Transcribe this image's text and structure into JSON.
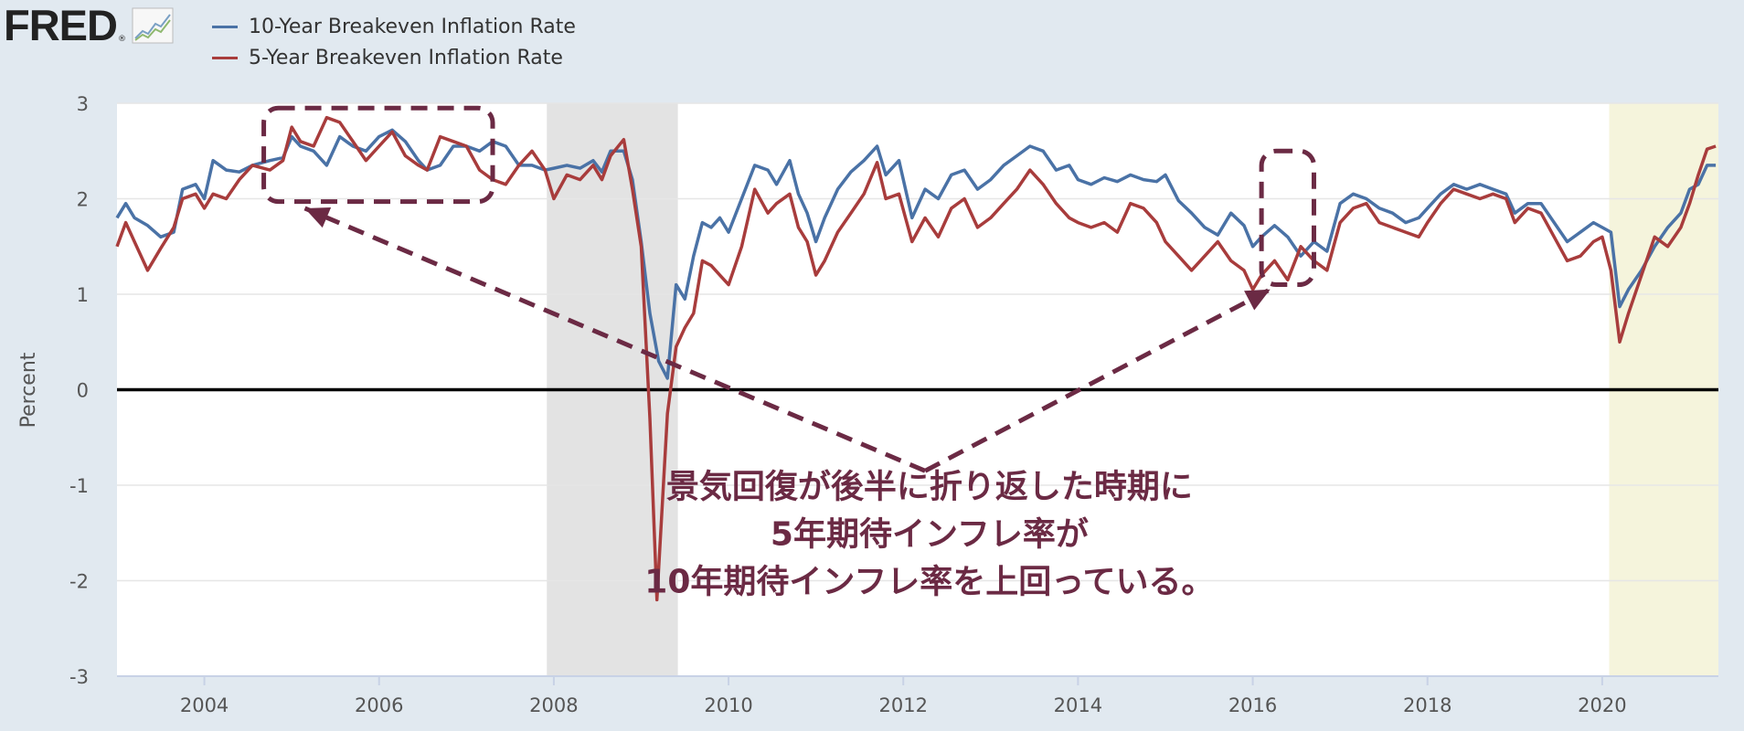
{
  "logo": {
    "text": "FRED",
    "reg": "®",
    "icon": "sparkline-icon"
  },
  "colors": {
    "series1": "#4a72a6",
    "series2": "#a83c3c",
    "annotation": "#6b2a44",
    "recession": "#e3e3e3",
    "covid": "#f5f4dc",
    "background": "#e1e9f0"
  },
  "chart_data": {
    "type": "line",
    "ylabel": "Percent",
    "ylim": [
      -3,
      3
    ],
    "xlim": [
      2003.0,
      2021.33
    ],
    "yticks": [
      "3",
      "2",
      "1",
      "0",
      "-1",
      "-2",
      "-3"
    ],
    "xticks": [
      "2004",
      "2006",
      "2008",
      "2010",
      "2012",
      "2014",
      "2016",
      "2018",
      "2020"
    ],
    "grid": true,
    "legend": "top-left",
    "shaded_periods": [
      {
        "start": 2007.92,
        "end": 2009.42,
        "kind": "recession"
      },
      {
        "start": 2020.08,
        "end": 2021.33,
        "kind": "highlight"
      }
    ],
    "series": [
      {
        "name": "10-Year Breakeven Inflation Rate",
        "points": [
          [
            2003.0,
            1.8
          ],
          [
            2003.1,
            1.95
          ],
          [
            2003.2,
            1.8
          ],
          [
            2003.35,
            1.72
          ],
          [
            2003.5,
            1.6
          ],
          [
            2003.65,
            1.65
          ],
          [
            2003.75,
            2.1
          ],
          [
            2003.9,
            2.15
          ],
          [
            2004.0,
            2.0
          ],
          [
            2004.1,
            2.4
          ],
          [
            2004.25,
            2.3
          ],
          [
            2004.4,
            2.28
          ],
          [
            2004.55,
            2.35
          ],
          [
            2004.75,
            2.4
          ],
          [
            2004.9,
            2.43
          ],
          [
            2005.0,
            2.65
          ],
          [
            2005.1,
            2.55
          ],
          [
            2005.25,
            2.5
          ],
          [
            2005.4,
            2.35
          ],
          [
            2005.55,
            2.65
          ],
          [
            2005.7,
            2.55
          ],
          [
            2005.85,
            2.5
          ],
          [
            2006.0,
            2.65
          ],
          [
            2006.15,
            2.72
          ],
          [
            2006.3,
            2.6
          ],
          [
            2006.45,
            2.4
          ],
          [
            2006.55,
            2.3
          ],
          [
            2006.7,
            2.35
          ],
          [
            2006.85,
            2.55
          ],
          [
            2007.0,
            2.55
          ],
          [
            2007.15,
            2.5
          ],
          [
            2007.3,
            2.6
          ],
          [
            2007.45,
            2.55
          ],
          [
            2007.6,
            2.35
          ],
          [
            2007.75,
            2.35
          ],
          [
            2007.9,
            2.3
          ],
          [
            2008.0,
            2.32
          ],
          [
            2008.15,
            2.35
          ],
          [
            2008.3,
            2.32
          ],
          [
            2008.45,
            2.4
          ],
          [
            2008.55,
            2.28
          ],
          [
            2008.65,
            2.5
          ],
          [
            2008.8,
            2.5
          ],
          [
            2008.9,
            2.2
          ],
          [
            2009.0,
            1.55
          ],
          [
            2009.1,
            0.8
          ],
          [
            2009.2,
            0.3
          ],
          [
            2009.3,
            0.12
          ],
          [
            2009.4,
            1.1
          ],
          [
            2009.5,
            0.95
          ],
          [
            2009.6,
            1.4
          ],
          [
            2009.7,
            1.75
          ],
          [
            2009.8,
            1.7
          ],
          [
            2009.9,
            1.8
          ],
          [
            2010.0,
            1.65
          ],
          [
            2010.15,
            2.0
          ],
          [
            2010.3,
            2.35
          ],
          [
            2010.45,
            2.3
          ],
          [
            2010.55,
            2.15
          ],
          [
            2010.7,
            2.4
          ],
          [
            2010.8,
            2.05
          ],
          [
            2010.9,
            1.85
          ],
          [
            2011.0,
            1.55
          ],
          [
            2011.1,
            1.8
          ],
          [
            2011.25,
            2.1
          ],
          [
            2011.4,
            2.28
          ],
          [
            2011.55,
            2.4
          ],
          [
            2011.7,
            2.55
          ],
          [
            2011.8,
            2.25
          ],
          [
            2011.95,
            2.4
          ],
          [
            2012.1,
            1.8
          ],
          [
            2012.25,
            2.1
          ],
          [
            2012.4,
            2.0
          ],
          [
            2012.55,
            2.25
          ],
          [
            2012.7,
            2.3
          ],
          [
            2012.85,
            2.1
          ],
          [
            2013.0,
            2.2
          ],
          [
            2013.15,
            2.35
          ],
          [
            2013.3,
            2.45
          ],
          [
            2013.45,
            2.55
          ],
          [
            2013.6,
            2.5
          ],
          [
            2013.75,
            2.3
          ],
          [
            2013.9,
            2.35
          ],
          [
            2014.0,
            2.2
          ],
          [
            2014.15,
            2.15
          ],
          [
            2014.3,
            2.22
          ],
          [
            2014.45,
            2.18
          ],
          [
            2014.6,
            2.25
          ],
          [
            2014.75,
            2.2
          ],
          [
            2014.9,
            2.18
          ],
          [
            2015.0,
            2.25
          ],
          [
            2015.15,
            1.98
          ],
          [
            2015.3,
            1.85
          ],
          [
            2015.45,
            1.7
          ],
          [
            2015.6,
            1.62
          ],
          [
            2015.75,
            1.85
          ],
          [
            2015.9,
            1.72
          ],
          [
            2016.0,
            1.5
          ],
          [
            2016.1,
            1.6
          ],
          [
            2016.25,
            1.72
          ],
          [
            2016.4,
            1.6
          ],
          [
            2016.55,
            1.4
          ],
          [
            2016.7,
            1.55
          ],
          [
            2016.85,
            1.45
          ],
          [
            2017.0,
            1.95
          ],
          [
            2017.15,
            2.05
          ],
          [
            2017.3,
            2.0
          ],
          [
            2017.45,
            1.9
          ],
          [
            2017.6,
            1.85
          ],
          [
            2017.75,
            1.75
          ],
          [
            2017.9,
            1.8
          ],
          [
            2018.0,
            1.9
          ],
          [
            2018.15,
            2.05
          ],
          [
            2018.3,
            2.15
          ],
          [
            2018.45,
            2.1
          ],
          [
            2018.6,
            2.15
          ],
          [
            2018.75,
            2.1
          ],
          [
            2018.9,
            2.05
          ],
          [
            2019.0,
            1.85
          ],
          [
            2019.15,
            1.95
          ],
          [
            2019.3,
            1.95
          ],
          [
            2019.45,
            1.75
          ],
          [
            2019.6,
            1.55
          ],
          [
            2019.75,
            1.65
          ],
          [
            2019.9,
            1.75
          ],
          [
            2020.0,
            1.7
          ],
          [
            2020.1,
            1.65
          ],
          [
            2020.2,
            0.87
          ],
          [
            2020.3,
            1.05
          ],
          [
            2020.45,
            1.25
          ],
          [
            2020.6,
            1.5
          ],
          [
            2020.75,
            1.7
          ],
          [
            2020.9,
            1.85
          ],
          [
            2021.0,
            2.1
          ],
          [
            2021.1,
            2.15
          ],
          [
            2021.2,
            2.35
          ],
          [
            2021.3,
            2.35
          ]
        ]
      },
      {
        "name": "5-Year Breakeven Inflation Rate",
        "points": [
          [
            2003.0,
            1.5
          ],
          [
            2003.1,
            1.75
          ],
          [
            2003.2,
            1.55
          ],
          [
            2003.35,
            1.25
          ],
          [
            2003.5,
            1.48
          ],
          [
            2003.65,
            1.7
          ],
          [
            2003.75,
            2.0
          ],
          [
            2003.9,
            2.05
          ],
          [
            2004.0,
            1.9
          ],
          [
            2004.1,
            2.05
          ],
          [
            2004.25,
            2.0
          ],
          [
            2004.4,
            2.2
          ],
          [
            2004.55,
            2.35
          ],
          [
            2004.75,
            2.3
          ],
          [
            2004.9,
            2.4
          ],
          [
            2005.0,
            2.75
          ],
          [
            2005.1,
            2.6
          ],
          [
            2005.25,
            2.55
          ],
          [
            2005.4,
            2.85
          ],
          [
            2005.55,
            2.8
          ],
          [
            2005.7,
            2.6
          ],
          [
            2005.85,
            2.4
          ],
          [
            2006.0,
            2.55
          ],
          [
            2006.15,
            2.7
          ],
          [
            2006.3,
            2.45
          ],
          [
            2006.45,
            2.35
          ],
          [
            2006.55,
            2.3
          ],
          [
            2006.7,
            2.65
          ],
          [
            2006.85,
            2.6
          ],
          [
            2007.0,
            2.55
          ],
          [
            2007.15,
            2.3
          ],
          [
            2007.3,
            2.2
          ],
          [
            2007.45,
            2.15
          ],
          [
            2007.6,
            2.35
          ],
          [
            2007.75,
            2.5
          ],
          [
            2007.9,
            2.3
          ],
          [
            2008.0,
            2.0
          ],
          [
            2008.15,
            2.25
          ],
          [
            2008.3,
            2.2
          ],
          [
            2008.45,
            2.35
          ],
          [
            2008.55,
            2.2
          ],
          [
            2008.65,
            2.45
          ],
          [
            2008.8,
            2.62
          ],
          [
            2008.9,
            2.1
          ],
          [
            2009.0,
            1.5
          ],
          [
            2009.1,
            -0.3
          ],
          [
            2009.18,
            -2.2
          ],
          [
            2009.3,
            -0.25
          ],
          [
            2009.4,
            0.45
          ],
          [
            2009.5,
            0.65
          ],
          [
            2009.6,
            0.8
          ],
          [
            2009.7,
            1.35
          ],
          [
            2009.8,
            1.3
          ],
          [
            2009.9,
            1.2
          ],
          [
            2010.0,
            1.1
          ],
          [
            2010.15,
            1.5
          ],
          [
            2010.3,
            2.1
          ],
          [
            2010.45,
            1.85
          ],
          [
            2010.55,
            1.95
          ],
          [
            2010.7,
            2.05
          ],
          [
            2010.8,
            1.7
          ],
          [
            2010.9,
            1.55
          ],
          [
            2011.0,
            1.2
          ],
          [
            2011.1,
            1.35
          ],
          [
            2011.25,
            1.65
          ],
          [
            2011.4,
            1.85
          ],
          [
            2011.55,
            2.05
          ],
          [
            2011.7,
            2.38
          ],
          [
            2011.8,
            2.0
          ],
          [
            2011.95,
            2.05
          ],
          [
            2012.1,
            1.55
          ],
          [
            2012.25,
            1.8
          ],
          [
            2012.4,
            1.6
          ],
          [
            2012.55,
            1.9
          ],
          [
            2012.7,
            2.0
          ],
          [
            2012.85,
            1.7
          ],
          [
            2013.0,
            1.8
          ],
          [
            2013.15,
            1.95
          ],
          [
            2013.3,
            2.1
          ],
          [
            2013.45,
            2.3
          ],
          [
            2013.6,
            2.15
          ],
          [
            2013.75,
            1.95
          ],
          [
            2013.9,
            1.8
          ],
          [
            2014.0,
            1.75
          ],
          [
            2014.15,
            1.7
          ],
          [
            2014.3,
            1.75
          ],
          [
            2014.45,
            1.65
          ],
          [
            2014.6,
            1.95
          ],
          [
            2014.75,
            1.9
          ],
          [
            2014.9,
            1.75
          ],
          [
            2015.0,
            1.55
          ],
          [
            2015.15,
            1.4
          ],
          [
            2015.3,
            1.25
          ],
          [
            2015.45,
            1.4
          ],
          [
            2015.6,
            1.55
          ],
          [
            2015.75,
            1.35
          ],
          [
            2015.9,
            1.25
          ],
          [
            2016.0,
            1.05
          ],
          [
            2016.1,
            1.2
          ],
          [
            2016.25,
            1.35
          ],
          [
            2016.4,
            1.15
          ],
          [
            2016.55,
            1.5
          ],
          [
            2016.7,
            1.35
          ],
          [
            2016.85,
            1.25
          ],
          [
            2017.0,
            1.75
          ],
          [
            2017.15,
            1.9
          ],
          [
            2017.3,
            1.95
          ],
          [
            2017.45,
            1.75
          ],
          [
            2017.6,
            1.7
          ],
          [
            2017.75,
            1.65
          ],
          [
            2017.9,
            1.6
          ],
          [
            2018.0,
            1.75
          ],
          [
            2018.15,
            1.95
          ],
          [
            2018.3,
            2.1
          ],
          [
            2018.45,
            2.05
          ],
          [
            2018.6,
            2.0
          ],
          [
            2018.75,
            2.05
          ],
          [
            2018.9,
            2.0
          ],
          [
            2019.0,
            1.75
          ],
          [
            2019.15,
            1.9
          ],
          [
            2019.3,
            1.85
          ],
          [
            2019.45,
            1.6
          ],
          [
            2019.6,
            1.35
          ],
          [
            2019.75,
            1.4
          ],
          [
            2019.9,
            1.55
          ],
          [
            2020.0,
            1.6
          ],
          [
            2020.1,
            1.25
          ],
          [
            2020.2,
            0.5
          ],
          [
            2020.3,
            0.8
          ],
          [
            2020.45,
            1.2
          ],
          [
            2020.6,
            1.6
          ],
          [
            2020.75,
            1.5
          ],
          [
            2020.9,
            1.7
          ],
          [
            2021.0,
            1.95
          ],
          [
            2021.1,
            2.25
          ],
          [
            2021.2,
            2.52
          ],
          [
            2021.3,
            2.55
          ]
        ]
      }
    ],
    "annotation": {
      "lines": [
        "景気回復が後半に折り返した時期に",
        "5年期待インフレ率が",
        "10年期待インフレ率を上回っている。"
      ]
    }
  }
}
